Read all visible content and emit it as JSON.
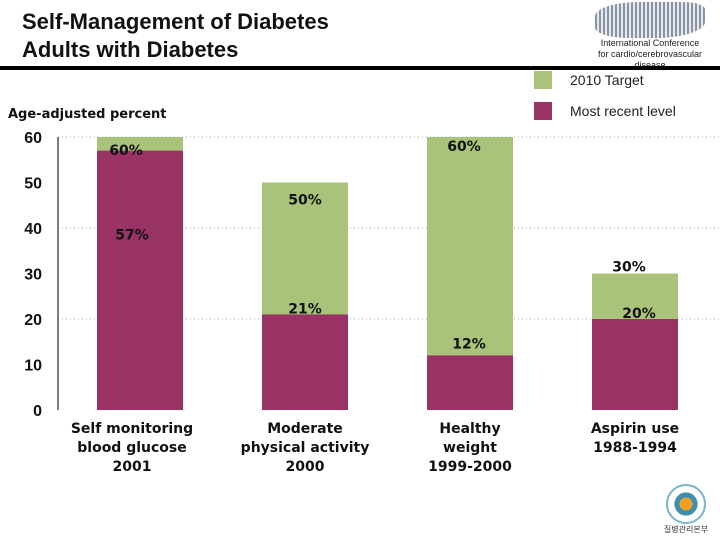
{
  "header": {
    "title_line1": "Self-Management of Diabetes",
    "title_line2": "Adults with Diabetes",
    "conference_line1": "International Conference",
    "conference_line2": "for cardio/cerebrovascular disease"
  },
  "footer_logo_text": "질병관리본부",
  "chart_data": {
    "type": "bar",
    "ylabel": "Age-adjusted percent",
    "ylim": [
      0,
      60
    ],
    "yticks": [
      0,
      10,
      20,
      30,
      40,
      50,
      60
    ],
    "grid": "dotted at 20, 40, 60",
    "legend_placement": "top-right",
    "categories": [
      [
        "Self monitoring",
        "blood glucose",
        "2001"
      ],
      [
        "Moderate",
        "physical activity",
        "2000"
      ],
      [
        "Healthy",
        "weight",
        "1999-2000"
      ],
      [
        "Aspirin use",
        "1988-1994"
      ]
    ],
    "series": [
      {
        "name": "2010 Target",
        "color": "#a9c47a",
        "values": [
          60,
          50,
          60,
          30
        ],
        "labels": [
          "60%",
          "50%",
          "60%",
          "30%"
        ]
      },
      {
        "name": "Most recent level",
        "color": "#993366",
        "values": [
          57,
          21,
          12,
          20
        ],
        "labels": [
          "57%",
          "21%",
          "12%",
          "20%"
        ]
      }
    ]
  }
}
